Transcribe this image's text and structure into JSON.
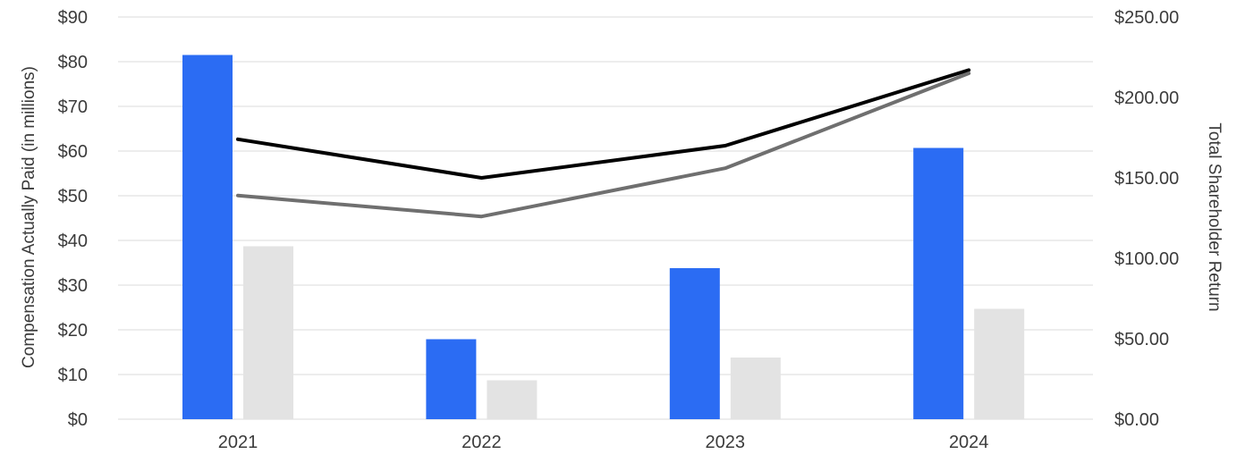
{
  "chart_data": {
    "type": "combo-bar-line",
    "title": "",
    "legend": "none",
    "grid": true,
    "background": "#ffffff",
    "gridline_color": "#ededed",
    "text_color": "#3b3b3b",
    "categories": [
      "2021",
      "2022",
      "2023",
      "2024"
    ],
    "series": [
      {
        "id": "blue-bars",
        "type": "bar",
        "axis": "left",
        "color": "#2b6cf3",
        "values": [
          81.5,
          17.9,
          33.8,
          60.7
        ]
      },
      {
        "id": "light-gray-bars",
        "type": "bar",
        "axis": "left",
        "color": "#e3e3e3",
        "values": [
          38.7,
          8.7,
          13.8,
          24.7
        ]
      },
      {
        "id": "black-line",
        "type": "line",
        "axis": "right",
        "color": "#000000",
        "values": [
          174,
          150,
          170,
          217
        ]
      },
      {
        "id": "gray-line",
        "type": "line",
        "axis": "right",
        "color": "#6f6f6f",
        "values": [
          139,
          126,
          156,
          215
        ]
      }
    ],
    "left_axis": {
      "title": "Compensation Actually Paid (in millions)",
      "min": 0,
      "max": 90,
      "step": 10,
      "ticks": [
        "$0",
        "$10",
        "$20",
        "$30",
        "$40",
        "$50",
        "$60",
        "$70",
        "$80",
        "$90"
      ]
    },
    "right_axis": {
      "title": "Total Shareholder Return",
      "min": 0,
      "max": 250,
      "step": 50,
      "ticks": [
        "$0.00",
        "$50.00",
        "$100.00",
        "$150.00",
        "$200.00",
        "$250.00"
      ]
    },
    "x_axis": {
      "ticks": [
        "2021",
        "2022",
        "2023",
        "2024"
      ]
    }
  }
}
